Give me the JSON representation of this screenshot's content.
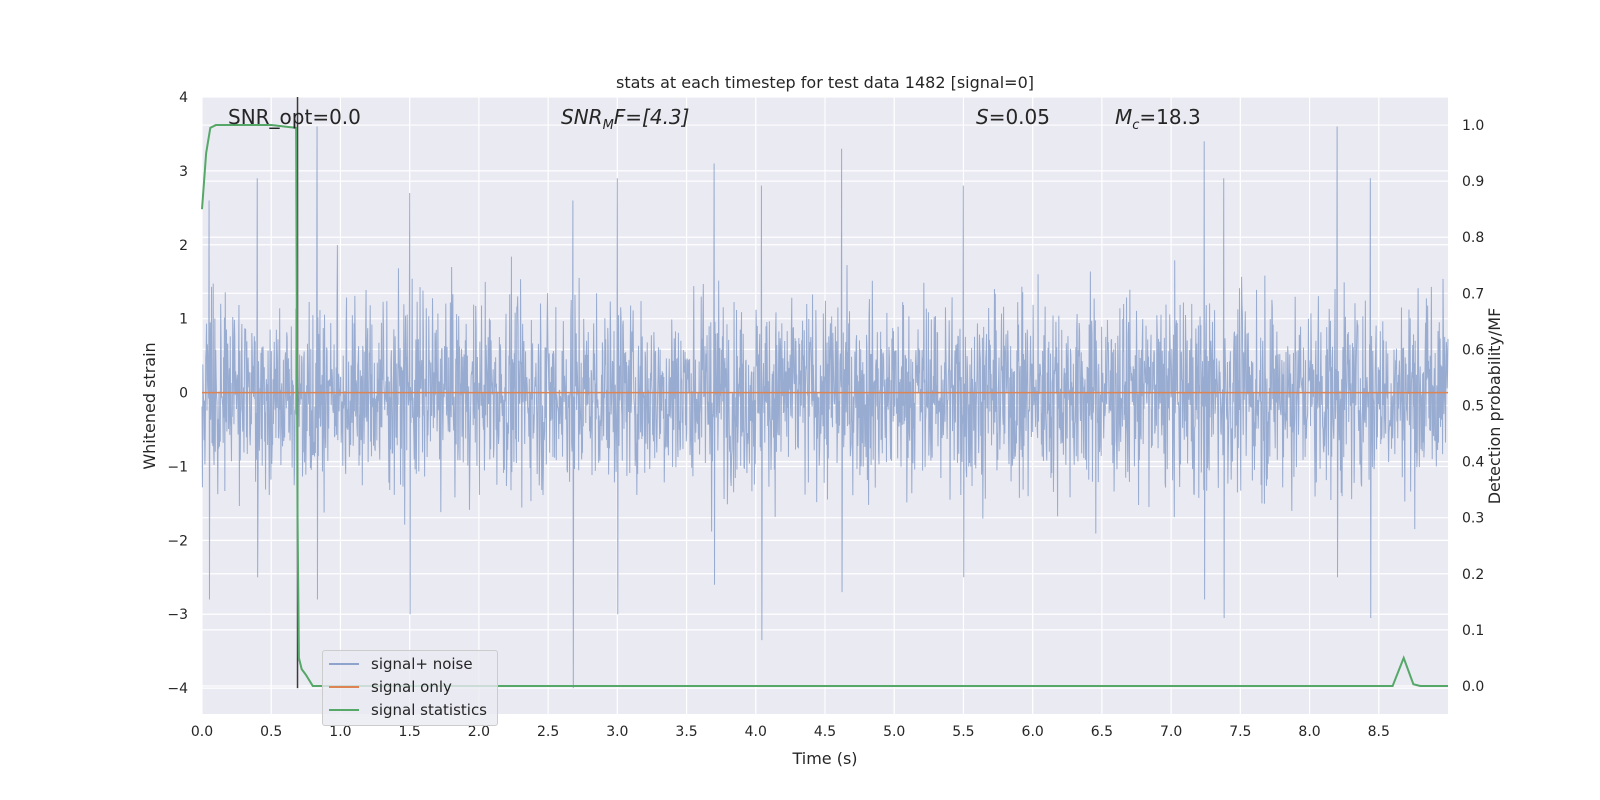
{
  "chart_data": {
    "type": "line",
    "title": "stats at each timestep for test data 1482 [signal=0]",
    "xlabel": "Time (s)",
    "ylabel_left": "Whitened strain",
    "ylabel_right": "Detection probability/MF",
    "xlim": [
      0.0,
      9.0
    ],
    "ylim_left": [
      -4.35,
      4.0
    ],
    "ylim_right": [
      -0.05,
      1.05
    ],
    "x_ticks": [
      "0.0",
      "0.5",
      "1.0",
      "1.5",
      "2.0",
      "2.5",
      "3.0",
      "3.5",
      "4.0",
      "4.5",
      "5.0",
      "5.5",
      "6.0",
      "6.5",
      "7.0",
      "7.5",
      "8.0",
      "8.5"
    ],
    "y_ticks_left": [
      "4",
      "3",
      "2",
      "1",
      "0",
      "−1",
      "−2",
      "−3",
      "−4"
    ],
    "y_ticks_right": [
      "1.0",
      "0.9",
      "0.8",
      "0.7",
      "0.6",
      "0.5",
      "0.4",
      "0.3",
      "0.2",
      "0.1",
      "0.0"
    ],
    "grid": true,
    "legend_placement": "lower-left",
    "annotations": {
      "snr_opt": "SNR_opt=0.0",
      "snr_mf_base": "SNR",
      "snr_mf_sub": "M",
      "snr_mf_rest": "F=[4.3]",
      "s_italic": "S",
      "s_rest": "=0.05",
      "mc_base": "M",
      "mc_sub": "c",
      "mc_rest": "=18.3"
    },
    "vertical_marker_x": 0.69,
    "series": [
      {
        "name": "signal+ noise",
        "color": "#8fa4cc",
        "description": "whitened noise, envelope approx ±1.3 to ±3.6",
        "envelope_peaks": [
          [
            0.05,
            2.6,
            -2.8
          ],
          [
            0.4,
            2.9,
            -2.5
          ],
          [
            0.83,
            3.6,
            -2.8
          ],
          [
            1.5,
            2.7,
            -3.0
          ],
          [
            2.68,
            2.6,
            -4.0
          ],
          [
            3.0,
            2.9,
            -3.0
          ],
          [
            3.7,
            3.1,
            -2.6
          ],
          [
            4.04,
            2.8,
            -3.35
          ],
          [
            4.62,
            3.3,
            -2.7
          ],
          [
            5.5,
            2.8,
            -2.5
          ],
          [
            7.24,
            3.4,
            -2.8
          ],
          [
            7.38,
            2.9,
            -3.05
          ],
          [
            8.2,
            3.6,
            -2.5
          ],
          [
            8.44,
            2.9,
            -3.05
          ]
        ]
      },
      {
        "name": "signal only",
        "color": "#dd8452",
        "x": [
          0.0,
          9.0
        ],
        "y": [
          0.0,
          0.0
        ]
      },
      {
        "name": "signal statistics",
        "color": "#55a868",
        "axis": "right",
        "x": [
          0.0,
          0.03,
          0.06,
          0.1,
          0.2,
          0.5,
          0.68,
          0.69,
          0.7,
          0.72,
          0.75,
          0.8,
          1.0,
          3.0,
          8.0,
          8.6,
          8.68,
          8.75,
          8.8,
          9.0
        ],
        "y": [
          0.85,
          0.95,
          0.995,
          1.0,
          1.0,
          1.0,
          0.995,
          0.3,
          0.05,
          0.03,
          0.02,
          0.0,
          0.0,
          0.0,
          0.0,
          0.0,
          0.05,
          0.003,
          0.0,
          0.0
        ]
      }
    ]
  }
}
